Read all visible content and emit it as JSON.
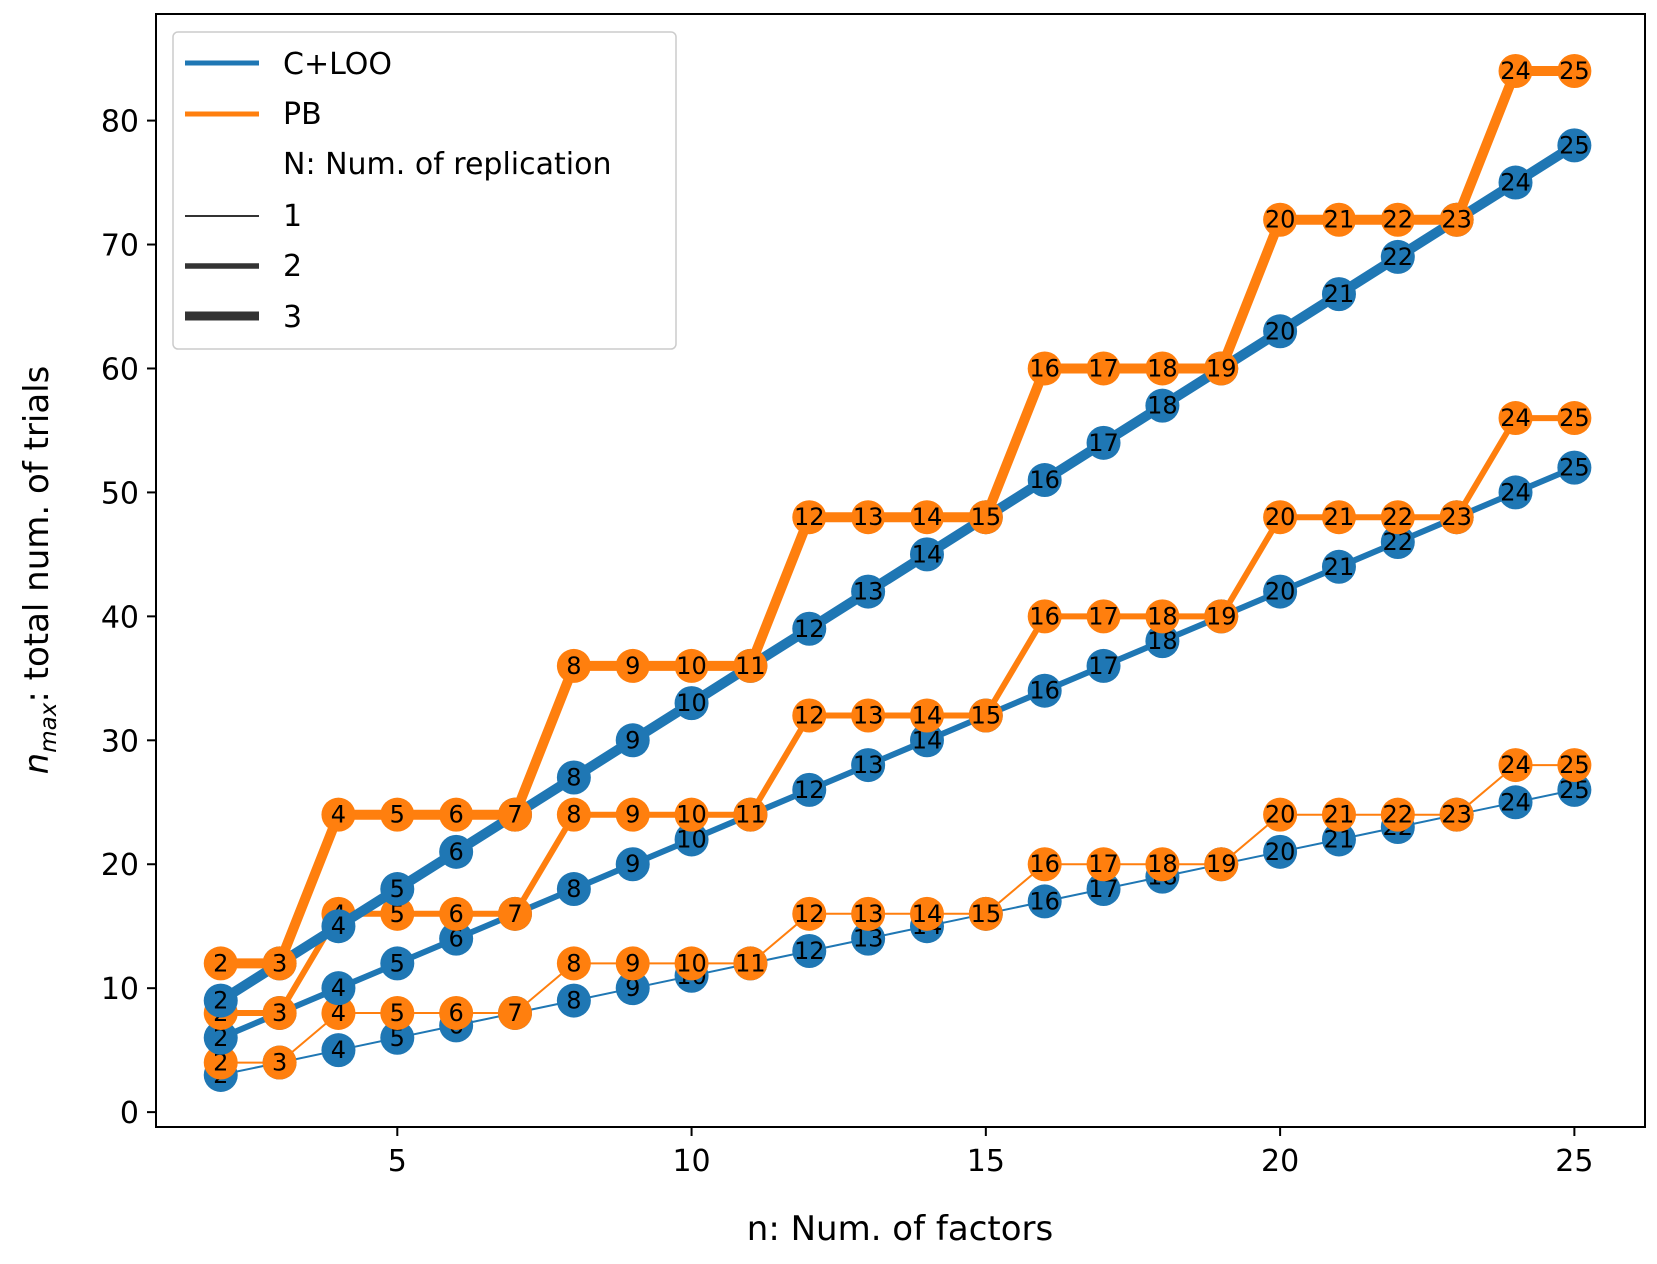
{
  "chart_data": {
    "type": "line",
    "xlabel": "n: Num. of factors",
    "ylabel_main": "n",
    "ylabel_sub": "max",
    "ylabel_rest": ": total num. of trials",
    "xlim": [
      0.9,
      26.2
    ],
    "ylim": [
      -1.2,
      88.6
    ],
    "xticks": [
      5,
      10,
      15,
      20,
      25
    ],
    "yticks": [
      0,
      10,
      20,
      30,
      40,
      50,
      60,
      70,
      80
    ],
    "grid": false,
    "legend_position": "top-left",
    "legend": {
      "methods": [
        {
          "label": "C+LOO",
          "color": "#1f77b4"
        },
        {
          "label": "PB",
          "color": "#ff7f0e"
        }
      ],
      "replication_title": "N: Num. of replication",
      "replications": [
        {
          "label": "1",
          "width": 1.5
        },
        {
          "label": "2",
          "width": 3
        },
        {
          "label": "3",
          "width": 4.5
        }
      ]
    },
    "x": [
      2,
      3,
      4,
      5,
      6,
      7,
      8,
      9,
      10,
      11,
      12,
      13,
      14,
      15,
      16,
      17,
      18,
      19,
      20,
      21,
      22,
      23,
      24,
      25
    ],
    "point_labels": [
      "2",
      "3",
      "4",
      "5",
      "6",
      "7",
      "8",
      "9",
      "10",
      "11",
      "12",
      "13",
      "14",
      "15",
      "16",
      "17",
      "18",
      "19",
      "20",
      "21",
      "22",
      "23",
      "24",
      "25"
    ],
    "series": [
      {
        "method": "C+LOO",
        "replication": 1,
        "color": "#1f77b4",
        "values": [
          3,
          4,
          5,
          6,
          7,
          8,
          9,
          10,
          11,
          12,
          13,
          14,
          15,
          16,
          17,
          18,
          19,
          20,
          21,
          22,
          23,
          24,
          25,
          26
        ]
      },
      {
        "method": "PB",
        "replication": 1,
        "color": "#ff7f0e",
        "values": [
          4,
          4,
          8,
          8,
          8,
          8,
          12,
          12,
          12,
          12,
          16,
          16,
          16,
          16,
          20,
          20,
          20,
          20,
          24,
          24,
          24,
          24,
          28,
          28
        ]
      },
      {
        "method": "C+LOO",
        "replication": 2,
        "color": "#1f77b4",
        "values": [
          6,
          8,
          10,
          12,
          14,
          16,
          18,
          20,
          22,
          24,
          26,
          28,
          30,
          32,
          34,
          36,
          38,
          40,
          42,
          44,
          46,
          48,
          50,
          52
        ]
      },
      {
        "method": "PB",
        "replication": 2,
        "color": "#ff7f0e",
        "values": [
          8,
          8,
          16,
          16,
          16,
          16,
          24,
          24,
          24,
          24,
          32,
          32,
          32,
          32,
          40,
          40,
          40,
          40,
          48,
          48,
          48,
          48,
          56,
          56
        ]
      },
      {
        "method": "C+LOO",
        "replication": 3,
        "color": "#1f77b4",
        "values": [
          9,
          12,
          15,
          18,
          21,
          24,
          27,
          30,
          33,
          36,
          39,
          42,
          45,
          48,
          51,
          54,
          57,
          60,
          63,
          66,
          69,
          72,
          75,
          78
        ]
      },
      {
        "method": "PB",
        "replication": 3,
        "color": "#ff7f0e",
        "values": [
          12,
          12,
          24,
          24,
          24,
          24,
          36,
          36,
          36,
          36,
          48,
          48,
          48,
          48,
          60,
          60,
          60,
          60,
          72,
          72,
          72,
          72,
          84,
          84
        ]
      }
    ]
  }
}
